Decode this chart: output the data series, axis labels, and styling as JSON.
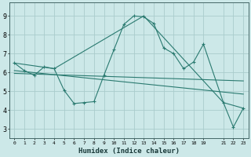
{
  "xlabel": "Humidex (Indice chaleur)",
  "bg_color": "#cce8e8",
  "grid_color": "#aacccc",
  "line_color": "#2a7a70",
  "xlim": [
    -0.5,
    23.5
  ],
  "ylim": [
    2.5,
    9.7
  ],
  "xticks": [
    0,
    1,
    2,
    3,
    4,
    5,
    6,
    7,
    8,
    9,
    10,
    11,
    12,
    13,
    14,
    15,
    16,
    17,
    18,
    19,
    21,
    22,
    23
  ],
  "xtick_labels": [
    "0",
    "1",
    "2",
    "3",
    "4",
    "5",
    "6",
    "7",
    "8",
    "9",
    "10",
    "11",
    "12",
    "13",
    "14",
    "15",
    "16",
    "17",
    "18",
    "19",
    "21",
    "22",
    "23"
  ],
  "yticks": [
    3,
    4,
    5,
    6,
    7,
    8,
    9
  ],
  "line1_x": [
    0,
    1,
    2,
    3,
    4,
    5,
    6,
    7,
    8,
    9,
    10,
    11,
    12,
    13,
    14,
    15,
    16,
    17,
    18,
    19,
    21,
    22,
    23
  ],
  "line1_y": [
    6.5,
    6.1,
    5.85,
    6.3,
    6.2,
    5.05,
    4.35,
    4.4,
    4.45,
    5.85,
    7.2,
    8.55,
    9.0,
    8.95,
    8.6,
    7.3,
    7.0,
    6.2,
    6.55,
    7.5,
    4.4,
    3.1,
    4.1
  ],
  "line2_x": [
    0,
    4,
    13,
    21,
    23
  ],
  "line2_y": [
    6.5,
    6.2,
    9.0,
    4.4,
    4.1
  ],
  "line3_x": [
    0,
    23
  ],
  "line3_y": [
    6.1,
    4.85
  ],
  "line4_x": [
    0,
    23
  ],
  "line4_y": [
    5.95,
    5.55
  ]
}
